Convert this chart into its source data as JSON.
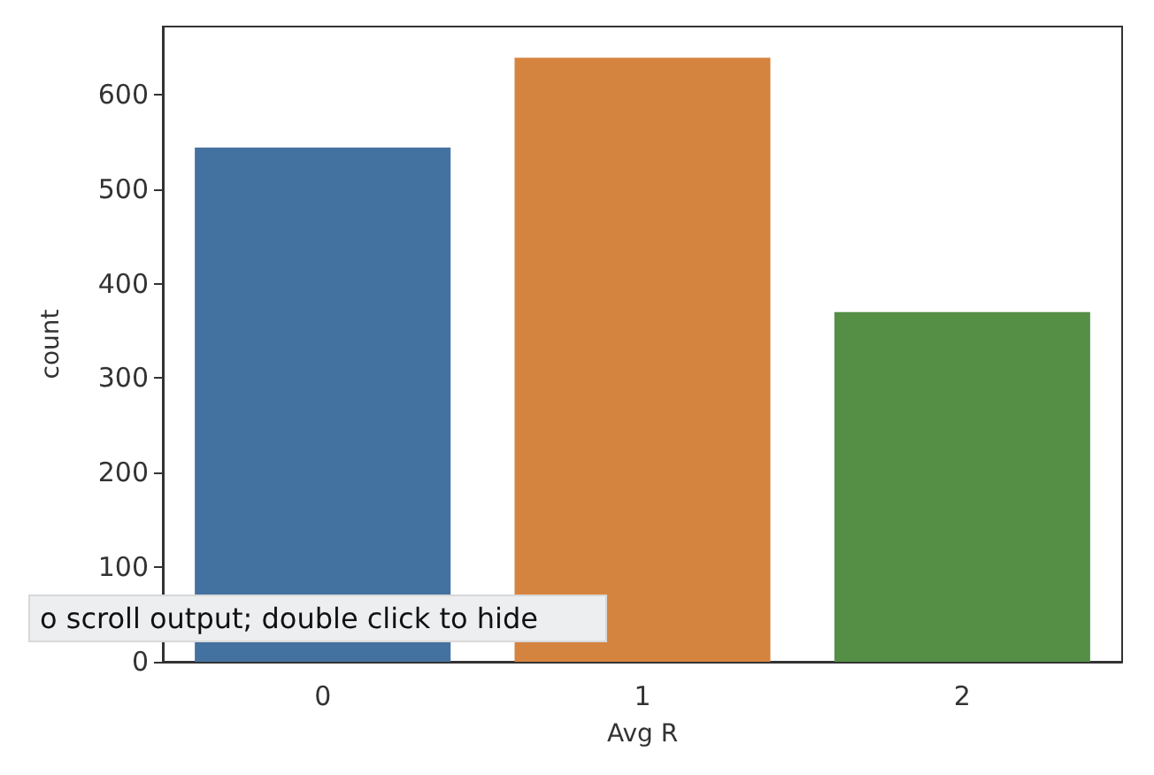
{
  "chart_data": {
    "type": "bar",
    "xlabel": "Avg R",
    "ylabel": "count",
    "categories": [
      "0",
      "1",
      "2"
    ],
    "values": [
      544,
      639,
      370
    ],
    "colors": [
      "#4472a0",
      "#d58440",
      "#548f45"
    ],
    "ylim": [
      0,
      672
    ],
    "yticks": [
      0,
      100,
      200,
      300,
      400,
      500,
      600
    ],
    "grid": false,
    "annotations": [
      "o scroll output; double click to hide"
    ]
  }
}
